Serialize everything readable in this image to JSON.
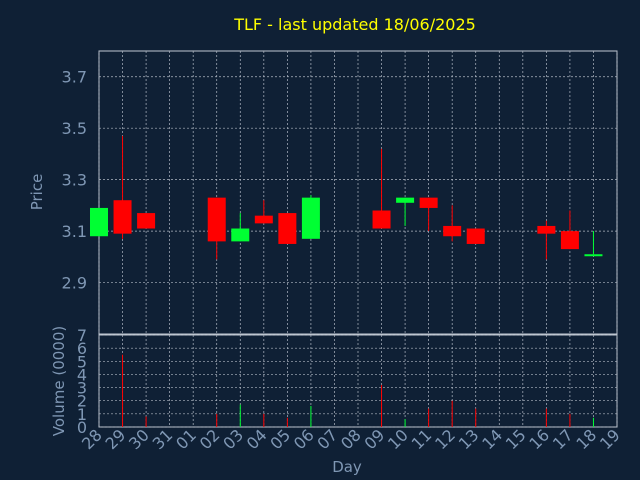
{
  "chart_data": [
    {
      "type": "candlestick",
      "title": "TLF - last updated 18/06/2025",
      "ylabel": "Price",
      "ylim": [
        2.7,
        3.8
      ],
      "yticks": [
        "2.9",
        "3.1",
        "3.3",
        "3.5",
        "3.7"
      ],
      "grid": true,
      "categories": [
        "28",
        "29",
        "30",
        "31",
        "01",
        "02",
        "03",
        "04",
        "05",
        "06",
        "07",
        "08",
        "09",
        "10",
        "11",
        "12",
        "13",
        "14",
        "15",
        "16",
        "17",
        "18",
        "19"
      ],
      "candles": [
        {
          "x": "28",
          "open": 3.08,
          "high": 3.19,
          "low": 3.08,
          "close": 3.19
        },
        {
          "x": "29",
          "open": 3.22,
          "high": 3.47,
          "low": 3.07,
          "close": 3.09
        },
        {
          "x": "30",
          "open": 3.17,
          "high": 3.17,
          "low": 3.11,
          "close": 3.11
        },
        {
          "x": "02",
          "open": 3.23,
          "high": 3.23,
          "low": 2.99,
          "close": 3.06
        },
        {
          "x": "03",
          "open": 3.06,
          "high": 3.17,
          "low": 3.06,
          "close": 3.11
        },
        {
          "x": "04",
          "open": 3.16,
          "high": 3.22,
          "low": 3.13,
          "close": 3.13
        },
        {
          "x": "05",
          "open": 3.17,
          "high": 3.17,
          "low": 3.05,
          "close": 3.05
        },
        {
          "x": "06",
          "open": 3.07,
          "high": 3.24,
          "low": 3.07,
          "close": 3.23
        },
        {
          "x": "09",
          "open": 3.18,
          "high": 3.42,
          "low": 3.11,
          "close": 3.11
        },
        {
          "x": "10",
          "open": 3.21,
          "high": 3.23,
          "low": 3.12,
          "close": 3.23
        },
        {
          "x": "11",
          "open": 3.23,
          "high": 3.23,
          "low": 3.1,
          "close": 3.19
        },
        {
          "x": "12",
          "open": 3.12,
          "high": 3.2,
          "low": 3.06,
          "close": 3.08
        },
        {
          "x": "13",
          "open": 3.11,
          "high": 3.11,
          "low": 3.05,
          "close": 3.05
        },
        {
          "x": "16",
          "open": 3.12,
          "high": 3.14,
          "low": 2.99,
          "close": 3.09
        },
        {
          "x": "17",
          "open": 3.1,
          "high": 3.18,
          "low": 3.03,
          "close": 3.03
        },
        {
          "x": "18",
          "open": 3.01,
          "high": 3.1,
          "low": 3.01,
          "close": 3.01
        }
      ]
    },
    {
      "type": "bar",
      "ylabel": "Volume (0000)",
      "xlabel": "Day",
      "ylim": [
        0,
        7
      ],
      "yticks": [
        "0",
        "1",
        "2",
        "3",
        "4",
        "5",
        "6",
        "7"
      ],
      "grid": true,
      "categories": [
        "28",
        "29",
        "30",
        "31",
        "01",
        "02",
        "03",
        "04",
        "05",
        "06",
        "07",
        "08",
        "09",
        "10",
        "11",
        "12",
        "13",
        "14",
        "15",
        "16",
        "17",
        "18",
        "19"
      ],
      "values": [
        0,
        5.5,
        0.8,
        0,
        0,
        1.0,
        1.7,
        1.0,
        0.7,
        1.6,
        0,
        0,
        3.2,
        0.6,
        1.4,
        2.0,
        1.4,
        0,
        0,
        1.4,
        1.0,
        0.7,
        0
      ],
      "colors": [
        "red",
        "red",
        "red",
        "red",
        "red",
        "red",
        "green",
        "red",
        "red",
        "green",
        "red",
        "red",
        "red",
        "green",
        "red",
        "red",
        "red",
        "red",
        "red",
        "red",
        "red",
        "green",
        "red"
      ]
    }
  ],
  "colors": {
    "background": "#0f2035",
    "title": "#ffff00",
    "axis_text": "#7f97b4",
    "up": "#00ff33",
    "down": "#ff0000",
    "grid": "#b0b8c4"
  }
}
